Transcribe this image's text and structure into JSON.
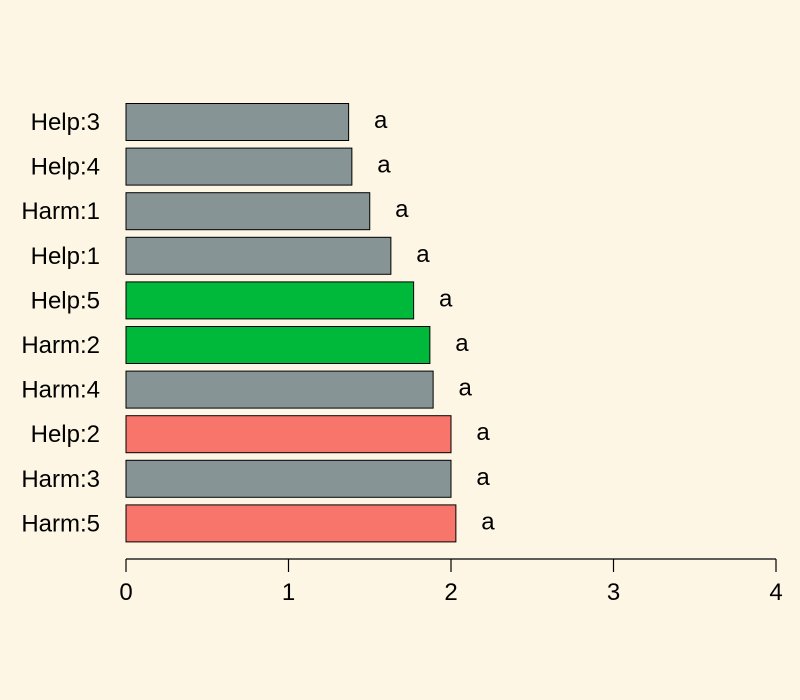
{
  "colors": {
    "background": "#fdf6e4",
    "gray": "#869496",
    "green": "#00b93a",
    "red": "#f8756c"
  },
  "chart_data": {
    "type": "bar",
    "orientation": "horizontal",
    "title": "",
    "xlabel": "",
    "ylabel": "",
    "xlim": [
      0,
      4
    ],
    "x_ticks": [
      0,
      1,
      2,
      3,
      4
    ],
    "grid": false,
    "categories": [
      "Help:3",
      "Help:4",
      "Harm:1",
      "Help:1",
      "Help:5",
      "Harm:2",
      "Harm:4",
      "Help:2",
      "Harm:3",
      "Harm:5"
    ],
    "values": [
      1.37,
      1.39,
      1.5,
      1.63,
      1.77,
      1.87,
      1.89,
      2.0,
      2.0,
      2.03
    ],
    "bar_colors": [
      "#869496",
      "#869496",
      "#869496",
      "#869496",
      "#00b93a",
      "#00b93a",
      "#869496",
      "#f8756c",
      "#869496",
      "#f8756c"
    ],
    "data_labels": [
      "a",
      "a",
      "a",
      "a",
      "a",
      "a",
      "a",
      "a",
      "a",
      "a"
    ]
  }
}
